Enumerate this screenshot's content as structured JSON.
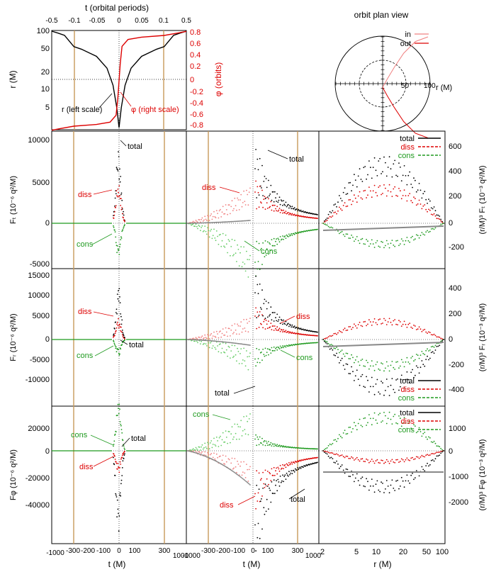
{
  "chart_data": [
    {
      "id": "orbit-radius-phase",
      "type": "line",
      "top_axis": {
        "label": "t (orbital periods)",
        "ticks": [
          "-0.5",
          "-0.1",
          "-0.05",
          "0",
          "0.05",
          "0.1",
          "0.5"
        ]
      },
      "left_axis": {
        "label": "r (M)",
        "ticks": [
          "100",
          "50",
          "20",
          "10",
          "5"
        ]
      },
      "right_axis": {
        "label": "φ (orbits)",
        "ticks": [
          "0.8",
          "0.6",
          "0.4",
          "0.2",
          "0",
          "-0.2",
          "-0.4",
          "-0.6",
          "-0.8"
        ],
        "color": "#dd0000"
      },
      "annotations": [
        {
          "text": "r (left scale)",
          "color": "#000000"
        },
        {
          "text": "φ (right scale)",
          "color": "#dd0000"
        }
      ],
      "series": [
        {
          "name": "r",
          "color": "#000000",
          "x": [
            -1000,
            -700,
            -500,
            -300,
            -250,
            -150,
            -80,
            -40,
            -15,
            0,
            15,
            40,
            80,
            150,
            250,
            300,
            500,
            700,
            1000
          ],
          "y": [
            100,
            93,
            86,
            57,
            52,
            40,
            26,
            14,
            6.2,
            3.0,
            6.2,
            14,
            26,
            40,
            52,
            57,
            86,
            93,
            100
          ]
        },
        {
          "name": "phi",
          "color": "#dd0000",
          "x": [
            -1000,
            -600,
            -300,
            -150,
            -60,
            -20,
            -8,
            0,
            8,
            20,
            60,
            150,
            300,
            600,
            1000
          ],
          "y": [
            -0.86,
            -0.83,
            -0.79,
            -0.76,
            -0.72,
            -0.6,
            -0.3,
            0,
            0.3,
            0.6,
            0.72,
            0.76,
            0.79,
            0.83,
            0.86
          ]
        }
      ]
    },
    {
      "id": "orbit-plan-view",
      "type": "line",
      "title": "orbit plan view",
      "ring_labels": [
        "50",
        "100",
        "r (M)"
      ],
      "legend": [
        {
          "label": "in",
          "color": "#f08080"
        },
        {
          "label": "out",
          "color": "#dd0000"
        }
      ],
      "series": [
        {
          "name": "in",
          "color": "#f08080",
          "x": [
            0,
            10,
            25,
            45,
            70,
            97
          ],
          "y": [
            -8,
            10,
            35,
            65,
            90,
            100
          ]
        },
        {
          "name": "out",
          "color": "#dd0000",
          "x": [
            0,
            10,
            25,
            45,
            70,
            97
          ],
          "y": [
            -8,
            -26,
            -51,
            -81,
            -106,
            -116
          ]
        }
      ]
    },
    {
      "id": "force-grid",
      "type": "scatter",
      "columns": [
        {
          "xlabel": "t (M)",
          "x_ticks": [
            "-1000",
            "-300",
            "-200",
            "-100",
            "0",
            "100",
            "300",
            "1000"
          ]
        },
        {
          "xlabel": "t (M)",
          "x_ticks": [
            "-1000",
            "-300",
            "-200",
            "-100",
            "0",
            "100",
            "300",
            "1000"
          ]
        },
        {
          "xlabel": "r (M)",
          "x_ticks": [
            "2",
            "5",
            "10",
            "20",
            "50",
            "100"
          ]
        }
      ],
      "rows": [
        {
          "component": "t",
          "left_label": "Fₜ (10⁻⁶ q²/M)",
          "right_label": "(r/M)³ Fₜ (10⁻³ q²/M)",
          "left_ticks": [
            "10000",
            "5000",
            "0",
            "-5000"
          ],
          "right_ticks": [
            "600",
            "400",
            "200",
            "0",
            "-200"
          ],
          "left_labels": [
            "total",
            "diss",
            "cons"
          ],
          "mid_labels": [
            "total",
            "diss",
            "cons"
          ],
          "legend": [
            "total",
            "diss",
            "cons"
          ]
        },
        {
          "component": "r",
          "left_label": "Fᵣ (10⁻⁶ q²/M)",
          "right_label": "(r/M)³ Fᵣ (10⁻³ q²/M)",
          "left_ticks": [
            "15000",
            "10000",
            "5000",
            "0",
            "-5000",
            "-10000"
          ],
          "right_ticks": [
            "400",
            "200",
            "0",
            "-200",
            "-400"
          ],
          "left_labels": [
            "diss",
            "cons",
            "total"
          ],
          "mid_labels": [
            "diss",
            "cons",
            "total"
          ],
          "legend": [
            "total",
            "diss",
            "cons"
          ]
        },
        {
          "component": "phi",
          "left_label": "Fφ (10⁻⁶ q²/M)",
          "right_label": "(r/M)³ Fφ (10⁻³ q²/M)",
          "left_ticks": [
            "20000",
            "0",
            "-20000",
            "-40000"
          ],
          "right_ticks": [
            "1000",
            "0",
            "-1000",
            "-2000"
          ],
          "left_labels": [
            "cons",
            "total",
            "diss"
          ],
          "mid_labels": [
            "cons",
            "diss",
            "total"
          ],
          "legend": [
            "total",
            "diss",
            "cons"
          ]
        }
      ],
      "series_colors": {
        "total": "#000000",
        "diss": "#dd0000",
        "cons": "#1f9a1f",
        "total_in": "#888888",
        "diss_in": "#f08080",
        "cons_in": "#66cc66"
      },
      "marker_line_color": "#c89a5a",
      "marker_times": [
        -300,
        300
      ]
    }
  ]
}
